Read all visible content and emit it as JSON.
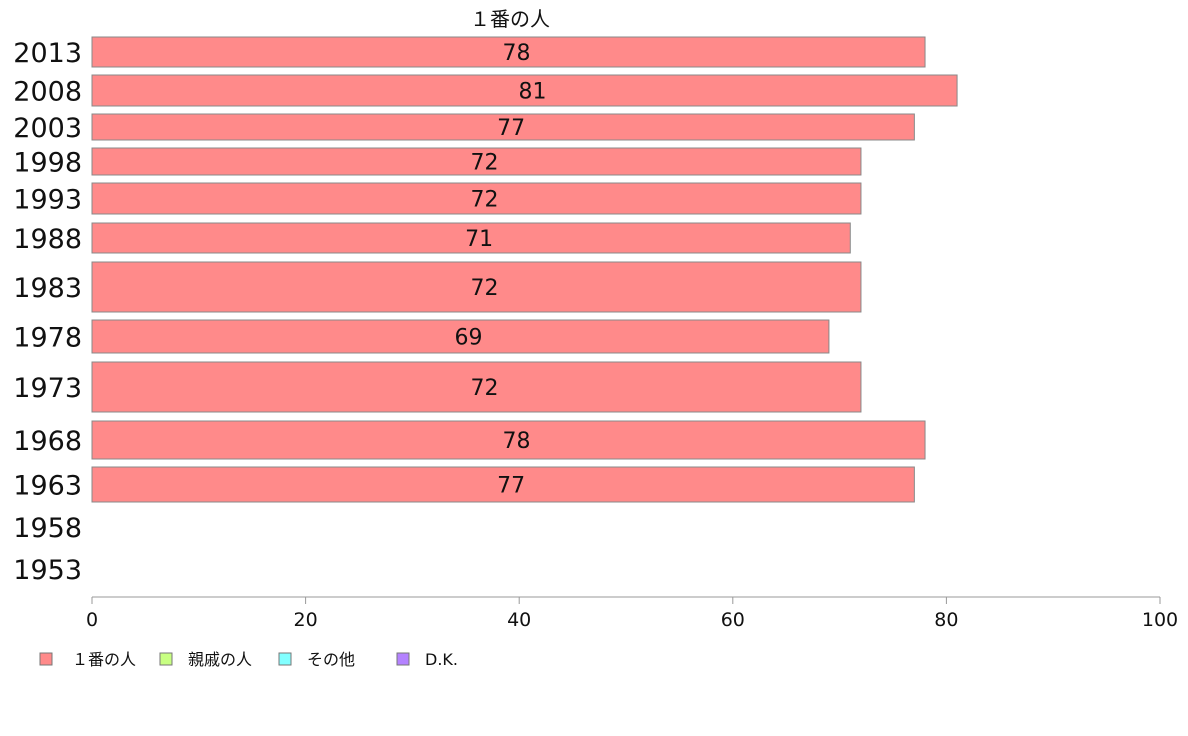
{
  "chart_data": {
    "type": "bar",
    "orientation": "horizontal",
    "title": "１番の人",
    "categories": [
      "2013",
      "2008",
      "2003",
      "1998",
      "1993",
      "1988",
      "1983",
      "1978",
      "1973",
      "1968",
      "1963",
      "1958",
      "1953"
    ],
    "series": [
      {
        "name": "１番の人",
        "color": "#ff8a8a",
        "values": [
          78,
          81,
          77,
          72,
          72,
          71,
          72,
          69,
          72,
          78,
          77,
          null,
          null
        ]
      },
      {
        "name": "親戚の人",
        "color": "#c8ff82",
        "values": [
          null,
          null,
          null,
          null,
          null,
          null,
          null,
          null,
          null,
          null,
          null,
          null,
          null
        ]
      },
      {
        "name": "その他",
        "color": "#82ffff",
        "values": [
          null,
          null,
          null,
          null,
          null,
          null,
          null,
          null,
          null,
          null,
          null,
          null,
          null
        ]
      },
      {
        "name": "D.K.",
        "color": "#b482ff",
        "values": [
          null,
          null,
          null,
          null,
          null,
          null,
          null,
          null,
          null,
          null,
          null,
          null,
          null
        ]
      }
    ],
    "data_labels": [
      "78",
      "81",
      "77",
      "72",
      "72",
      "71",
      "72",
      "69",
      "72",
      "78",
      "77",
      "",
      ""
    ],
    "xlim": [
      0,
      100
    ],
    "xticks": [
      "0",
      "20",
      "40",
      "60",
      "80",
      "100"
    ],
    "legend_position": "bottom-left",
    "grid": false
  }
}
